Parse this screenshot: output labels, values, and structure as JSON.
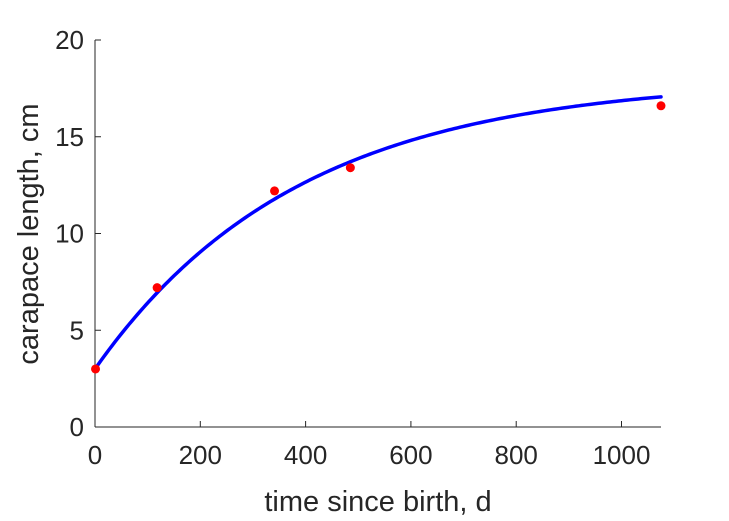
{
  "chart_data": {
    "type": "scatter",
    "title": "",
    "xlabel": "time since birth, d",
    "ylabel": "carapace length, cm",
    "xlim": [
      0,
      1075
    ],
    "ylim": [
      0,
      20
    ],
    "x_ticks": [
      0,
      200,
      400,
      600,
      800,
      1000
    ],
    "y_ticks": [
      0,
      5,
      10,
      15,
      20
    ],
    "grid": false,
    "legend": "none",
    "series": [
      {
        "kind": "points",
        "color": "#ff0000",
        "x": [
          1,
          118,
          341,
          485,
          1075
        ],
        "y": [
          3.0,
          7.2,
          12.2,
          13.4,
          16.6
        ]
      },
      {
        "kind": "curve",
        "color": "#0000ff",
        "fit": {
          "form": "von_bertalanffy",
          "L_inf": 18.0,
          "L_0": 3.0,
          "k": 0.00258
        },
        "x_range": [
          0,
          1075
        ]
      }
    ]
  }
}
